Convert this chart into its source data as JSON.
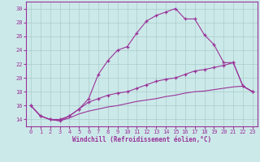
{
  "xlabel": "Windchill (Refroidissement éolien,°C)",
  "background_color": "#cce9e9",
  "line_color": "#993399",
  "grid_color": "#aacccc",
  "x_values": [
    0,
    1,
    2,
    3,
    4,
    5,
    6,
    7,
    8,
    9,
    10,
    11,
    12,
    13,
    14,
    15,
    16,
    17,
    18,
    19,
    20,
    21,
    22,
    23
  ],
  "curve1": [
    16.0,
    14.5,
    14.0,
    14.0,
    14.5,
    15.5,
    17.0,
    20.5,
    22.5,
    24.0,
    24.5,
    26.5,
    28.2,
    29.0,
    29.5,
    30.0,
    28.5,
    28.5,
    26.2,
    24.8,
    22.2,
    22.2,
    18.8,
    18.0
  ],
  "curve2": [
    16.0,
    14.5,
    14.0,
    13.8,
    14.5,
    15.5,
    16.5,
    17.0,
    17.5,
    17.8,
    18.0,
    18.5,
    19.0,
    19.5,
    19.8,
    20.0,
    20.5,
    21.0,
    21.2,
    21.5,
    21.8,
    22.2,
    18.8,
    18.0
  ],
  "curve3": [
    16.0,
    14.5,
    14.0,
    13.8,
    14.2,
    14.8,
    15.2,
    15.5,
    15.8,
    16.0,
    16.3,
    16.6,
    16.8,
    17.0,
    17.3,
    17.5,
    17.8,
    18.0,
    18.1,
    18.3,
    18.5,
    18.7,
    18.8,
    18.0
  ],
  "ylim": [
    13,
    31
  ],
  "xlim": [
    -0.5,
    23.5
  ],
  "yticks": [
    14,
    16,
    18,
    20,
    22,
    24,
    26,
    28,
    30
  ],
  "xticks": [
    0,
    1,
    2,
    3,
    4,
    5,
    6,
    7,
    8,
    9,
    10,
    11,
    12,
    13,
    14,
    15,
    16,
    17,
    18,
    19,
    20,
    21,
    22,
    23
  ]
}
